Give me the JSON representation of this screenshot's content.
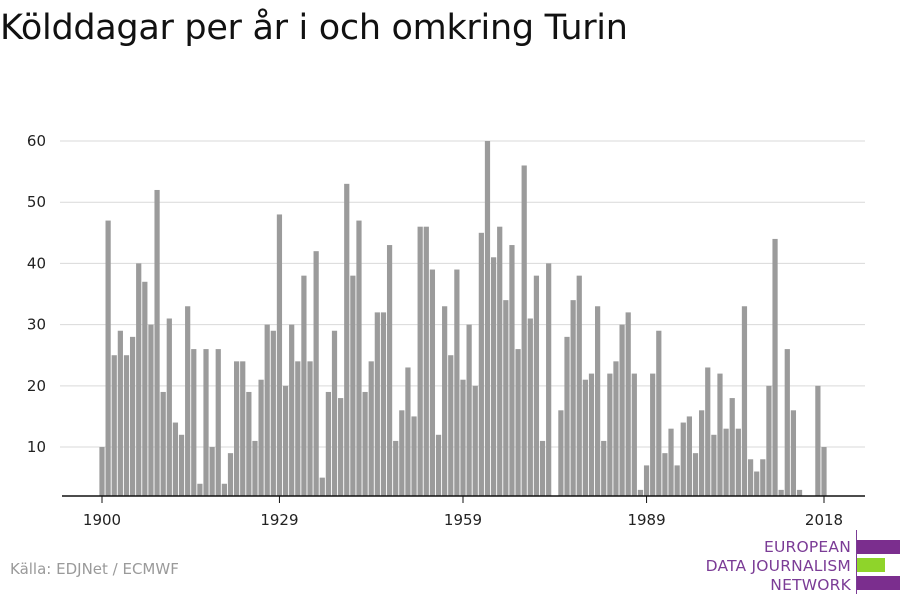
{
  "title": "Kölddagar per år i och omkring Turin",
  "source": "Källa: EDJNet / ECMWF",
  "logo": {
    "lines": [
      "EUROPEAN",
      "DATA JOURNALISM",
      "NETWORK"
    ],
    "colors": {
      "purple": "#7b2e8e",
      "green": "#8fd42a",
      "text": "#7b3c96"
    }
  },
  "colors": {
    "bar": "#9b9b9b",
    "grid": "#d9d9d9",
    "axis": "#111111"
  },
  "chart_data": {
    "type": "bar",
    "title": "Kölddagar per år i och omkring Turin",
    "xlabel": "",
    "ylabel": "",
    "x_start": 1900,
    "x_end": 2018,
    "x_ticks": [
      1900,
      1929,
      1959,
      1989,
      2018
    ],
    "y_ticks": [
      10,
      20,
      30,
      40,
      50,
      60
    ],
    "ylim": [
      2,
      60
    ],
    "grid": true,
    "values": [
      10,
      47,
      25,
      29,
      25,
      28,
      40,
      37,
      30,
      52,
      19,
      31,
      14,
      12,
      33,
      26,
      4,
      26,
      10,
      26,
      4,
      9,
      24,
      24,
      19,
      11,
      21,
      30,
      29,
      48,
      20,
      30,
      24,
      38,
      24,
      42,
      5,
      19,
      29,
      18,
      53,
      38,
      47,
      19,
      24,
      32,
      32,
      43,
      11,
      16,
      23,
      15,
      46,
      46,
      39,
      12,
      33,
      25,
      39,
      21,
      30,
      20,
      45,
      60,
      41,
      46,
      34,
      43,
      26,
      56,
      31,
      38,
      11,
      40,
      2,
      16,
      28,
      34,
      38,
      21,
      22,
      33,
      11,
      22,
      24,
      30,
      32,
      22,
      3,
      7,
      22,
      29,
      9,
      13,
      7,
      14,
      15,
      9,
      16,
      23,
      12,
      22,
      13,
      18,
      13,
      33,
      8,
      6,
      8,
      20,
      44,
      3,
      26,
      16,
      3,
      2,
      2,
      20,
      10
    ]
  }
}
